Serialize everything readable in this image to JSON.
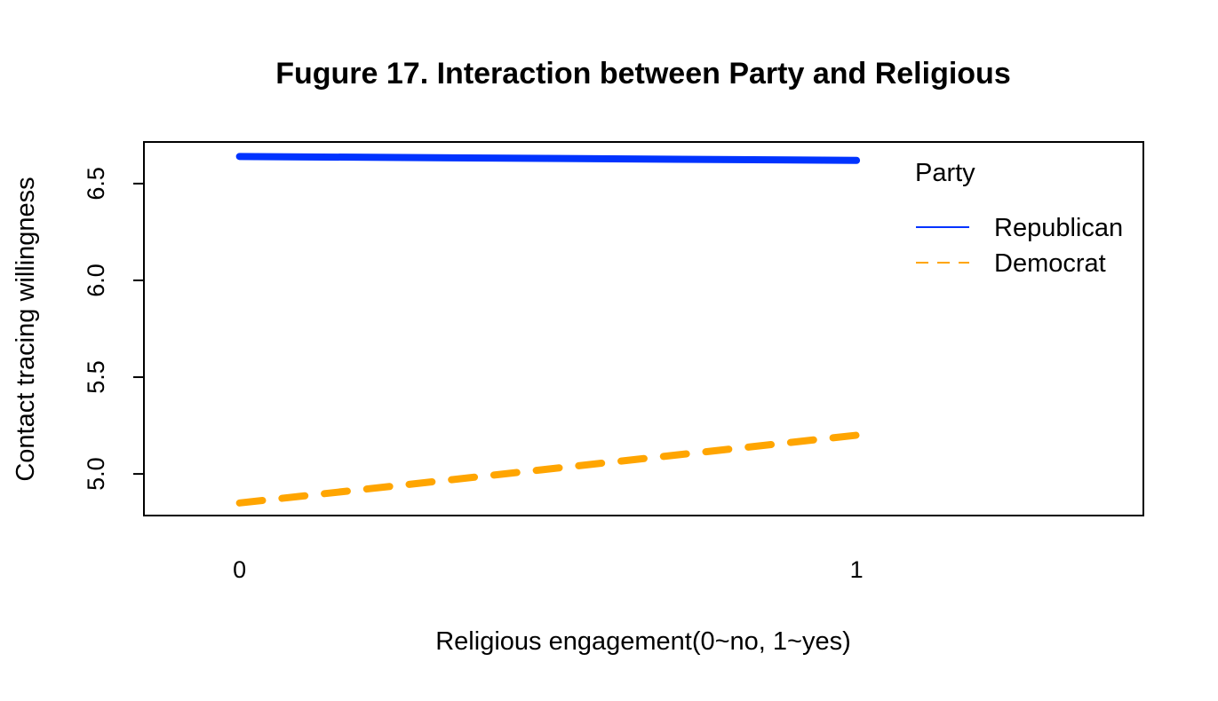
{
  "chart_data": {
    "type": "line",
    "title": "Fugure 17. Interaction between Party and Religious",
    "xlabel": "Religious engagement(0~no, 1~yes)",
    "ylabel": "Contact tracing willingness",
    "x": [
      0,
      1
    ],
    "x_ticks": [
      "0",
      "1"
    ],
    "y_ticks": [
      "5.0",
      "5.5",
      "6.0",
      "6.5"
    ],
    "xlim": [
      -0.155,
      1.465
    ],
    "ylim": [
      4.785,
      6.715
    ],
    "legend": {
      "title": "Party",
      "position": "top-right"
    },
    "series": [
      {
        "name": "Republican",
        "values": [
          6.64,
          6.62
        ],
        "color": "#0033ff",
        "dash": "solid"
      },
      {
        "name": "Democrat",
        "values": [
          4.85,
          5.2
        ],
        "color": "#ffa500",
        "dash": "dashed"
      }
    ],
    "grid": false
  }
}
